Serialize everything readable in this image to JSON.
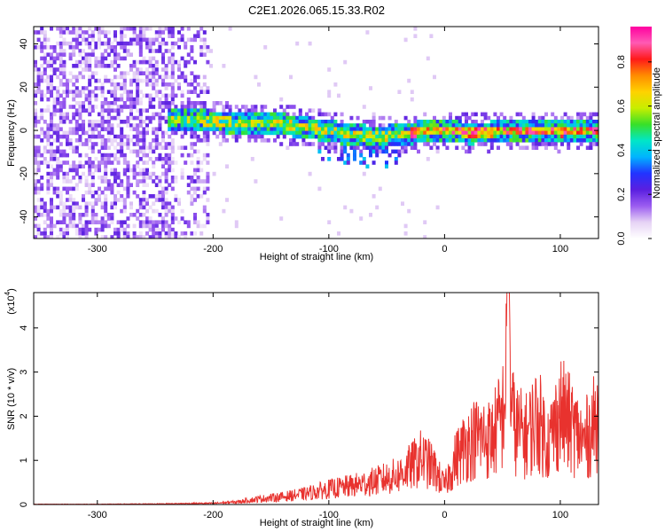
{
  "page": {
    "title": "C2E1.2026.065.15.33.R02"
  },
  "chart_data": [
    {
      "type": "heatmap",
      "title": "C2E1.2026.065.15.33.R02",
      "xlabel": "Height of straight line (km)",
      "ylabel": "Frequency (Hz)",
      "xlim": [
        -355,
        133
      ],
      "ylim": [
        -50,
        48
      ],
      "xticks": [
        -300,
        -200,
        -100,
        0,
        100
      ],
      "xtick_labels": [
        "-300",
        "-200",
        "-100",
        "0",
        "100"
      ],
      "yticks": [
        -40,
        -20,
        0,
        20,
        40
      ],
      "ytick_labels": [
        "-40",
        "-20",
        "0",
        "20",
        "40"
      ],
      "colorbar": {
        "label": "Normalized spectral amplitude",
        "range": [
          0,
          0.96
        ],
        "ticks": [
          0,
          0.2,
          0.4,
          0.6,
          0.8
        ],
        "tick_labels": [
          "0.0",
          "0.2",
          "0.4",
          "0.6",
          "0.8"
        ],
        "colormap": [
          "#ffffff",
          "#e6d3f5",
          "#9b5cf0",
          "#5a1fe0",
          "#2233ff",
          "#00b4ff",
          "#00e6c8",
          "#38e028",
          "#c8ee00",
          "#ffd200",
          "#ff8c00",
          "#ff1a1a",
          "#ff5ab4",
          "#ff00a0"
        ]
      },
      "ridge": {
        "x": [
          -240,
          -220,
          -200,
          -180,
          -160,
          -140,
          -120,
          -100,
          -80,
          -60,
          -40,
          -20,
          0,
          20,
          40,
          60,
          80,
          100,
          120,
          133
        ],
        "y": [
          6,
          5.5,
          5,
          4.5,
          4,
          3.5,
          2,
          0.5,
          -1.5,
          -2,
          -1.5,
          0.5,
          1,
          -0.5,
          0,
          1,
          0.5,
          0,
          0.5,
          1
        ]
      },
      "noise_region": {
        "x_from": -355,
        "x_to": -205,
        "level": 0.12
      }
    },
    {
      "type": "line",
      "title": "",
      "xlabel": "Height of straight line (km)",
      "ylabel": "SNR (10 * v/v)",
      "y_multiplier_label": "(x10",
      "y_multiplier_exp": "4",
      "xlim": [
        -355,
        133
      ],
      "ylim": [
        0,
        4.8
      ],
      "xticks": [
        -300,
        -200,
        -100,
        0,
        100
      ],
      "xtick_labels": [
        "-300",
        "-200",
        "-100",
        "0",
        "100"
      ],
      "yticks": [
        0,
        1,
        2,
        3,
        4
      ],
      "ytick_labels": [
        "0",
        "1",
        "2",
        "3",
        "4"
      ],
      "series": [
        {
          "color": "#e8322e",
          "x": [
            -355,
            -300,
            -250,
            -200,
            -180,
            -160,
            -140,
            -120,
            -100,
            -80,
            -60,
            -40,
            -30,
            -20,
            -10,
            0,
            10,
            20,
            30,
            40,
            50,
            55,
            60,
            70,
            80,
            90,
            100,
            110,
            120,
            133
          ],
          "y": [
            0.01,
            0.01,
            0.02,
            0.04,
            0.08,
            0.18,
            0.25,
            0.35,
            0.5,
            0.6,
            0.75,
            0.95,
            1.2,
            1.5,
            1.2,
            0.6,
            1.5,
            2.0,
            2.2,
            2.1,
            2.8,
            4.8,
            2.5,
            2.2,
            2.8,
            2.0,
            3.0,
            2.5,
            2.0,
            2.8
          ]
        }
      ]
    }
  ]
}
